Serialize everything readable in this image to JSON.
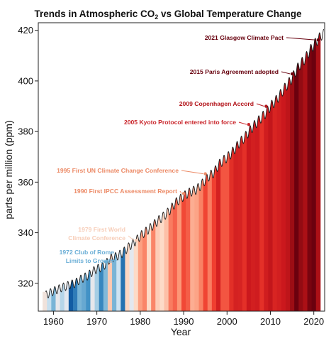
{
  "chart_data": {
    "type": "area",
    "title_main": "Trends in Atmospheric CO",
    "title_sub": "2",
    "title_rest": " vs Global Temperature Change",
    "xlabel": "Year",
    "ylabel": "parts per million (ppm)",
    "xlim": [
      1956.5,
      2022.5
    ],
    "ylim": [
      309,
      423
    ],
    "x_ticks": [
      1960,
      1970,
      1980,
      1990,
      2000,
      2010,
      2020
    ],
    "y_ticks": [
      320,
      340,
      360,
      380,
      400,
      420
    ],
    "grid": false,
    "co2_annual": {
      "years": [
        1958,
        1959,
        1960,
        1961,
        1962,
        1963,
        1964,
        1965,
        1966,
        1967,
        1968,
        1969,
        1970,
        1971,
        1972,
        1973,
        1974,
        1975,
        1976,
        1977,
        1978,
        1979,
        1980,
        1981,
        1982,
        1983,
        1984,
        1985,
        1986,
        1987,
        1988,
        1989,
        1990,
        1991,
        1992,
        1993,
        1994,
        1995,
        1996,
        1997,
        1998,
        1999,
        2000,
        2001,
        2002,
        2003,
        2004,
        2005,
        2006,
        2007,
        2008,
        2009,
        2010,
        2011,
        2012,
        2013,
        2014,
        2015,
        2016,
        2017,
        2018,
        2019,
        2020,
        2021,
        2022
      ],
      "ppm": [
        315.2,
        316.0,
        316.9,
        317.6,
        318.4,
        318.9,
        319.6,
        320.0,
        321.4,
        322.2,
        323.1,
        324.6,
        325.7,
        326.3,
        327.5,
        329.7,
        330.2,
        331.1,
        332.1,
        333.8,
        335.4,
        336.8,
        338.7,
        340.1,
        341.4,
        343.0,
        344.6,
        346.0,
        347.4,
        349.2,
        351.6,
        353.1,
        354.4,
        355.6,
        356.4,
        357.1,
        358.8,
        360.8,
        362.6,
        363.7,
        366.7,
        368.4,
        369.7,
        371.3,
        373.5,
        375.8,
        377.5,
        379.8,
        381.9,
        383.8,
        385.6,
        387.4,
        389.9,
        391.7,
        393.9,
        396.5,
        398.7,
        401.0,
        404.4,
        406.8,
        408.7,
        411.7,
        414.2,
        416.4,
        418.5
      ]
    },
    "warming_stripes": {
      "years": [
        1958,
        1959,
        1960,
        1961,
        1962,
        1963,
        1964,
        1965,
        1966,
        1967,
        1968,
        1969,
        1970,
        1971,
        1972,
        1973,
        1974,
        1975,
        1976,
        1977,
        1978,
        1979,
        1980,
        1981,
        1982,
        1983,
        1984,
        1985,
        1986,
        1987,
        1988,
        1989,
        1990,
        1991,
        1992,
        1993,
        1994,
        1995,
        1996,
        1997,
        1998,
        1999,
        2000,
        2001,
        2002,
        2003,
        2004,
        2005,
        2006,
        2007,
        2008,
        2009,
        2010,
        2011,
        2012,
        2013,
        2014,
        2015,
        2016,
        2017,
        2018,
        2019,
        2020,
        2021
      ],
      "anomaly": [
        0.07,
        -0.03,
        -0.12,
        0.03,
        -0.05,
        0.02,
        -0.28,
        -0.22,
        -0.12,
        -0.14,
        -0.18,
        0.03,
        -0.07,
        -0.2,
        -0.11,
        0.16,
        -0.12,
        -0.02,
        -0.24,
        0.13,
        0.02,
        0.12,
        0.25,
        0.31,
        0.12,
        0.31,
        0.15,
        0.12,
        0.18,
        0.33,
        0.39,
        0.27,
        0.45,
        0.4,
        0.22,
        0.24,
        0.32,
        0.46,
        0.33,
        0.47,
        0.63,
        0.42,
        0.42,
        0.55,
        0.63,
        0.62,
        0.54,
        0.68,
        0.64,
        0.66,
        0.54,
        0.65,
        0.72,
        0.61,
        0.64,
        0.68,
        0.75,
        0.9,
        1.01,
        0.92,
        0.85,
        0.98,
        1.01,
        0.85
      ]
    },
    "annotations": [
      {
        "text": "2021 Glasgow Climate Pact",
        "year": 2021,
        "ppm": 416.2,
        "color": "#67000d"
      },
      {
        "text": "2015 Paris Agreement adopted",
        "year": 2015,
        "ppm": 402.8,
        "color": "#67000d"
      },
      {
        "text": "2009 Copenhagen Accord",
        "year": 2009,
        "ppm": 390.0,
        "color": "#b3151b"
      },
      {
        "text": "2005 Kyoto Protocol entered into force",
        "year": 2005,
        "ppm": 382.8,
        "color": "#c9242a"
      },
      {
        "text": "1995 First UN Climate Change Conference",
        "year": 1995,
        "ppm": 363.3,
        "color": "#ec8a66"
      },
      {
        "text": "1990 First IPCC Assessment Report",
        "year": 1990,
        "ppm": 355.5,
        "color": "#ec8a66"
      },
      {
        "text": "1979 First World",
        "text2": "Climate Conference",
        "year": 1979,
        "ppm": 337.0,
        "color": "#f7cdb8"
      },
      {
        "text": "1972 Club of Rome",
        "text2": "Limits to Growth",
        "year": 1972,
        "ppm": 328.5,
        "color": "#6aaed6"
      }
    ]
  }
}
